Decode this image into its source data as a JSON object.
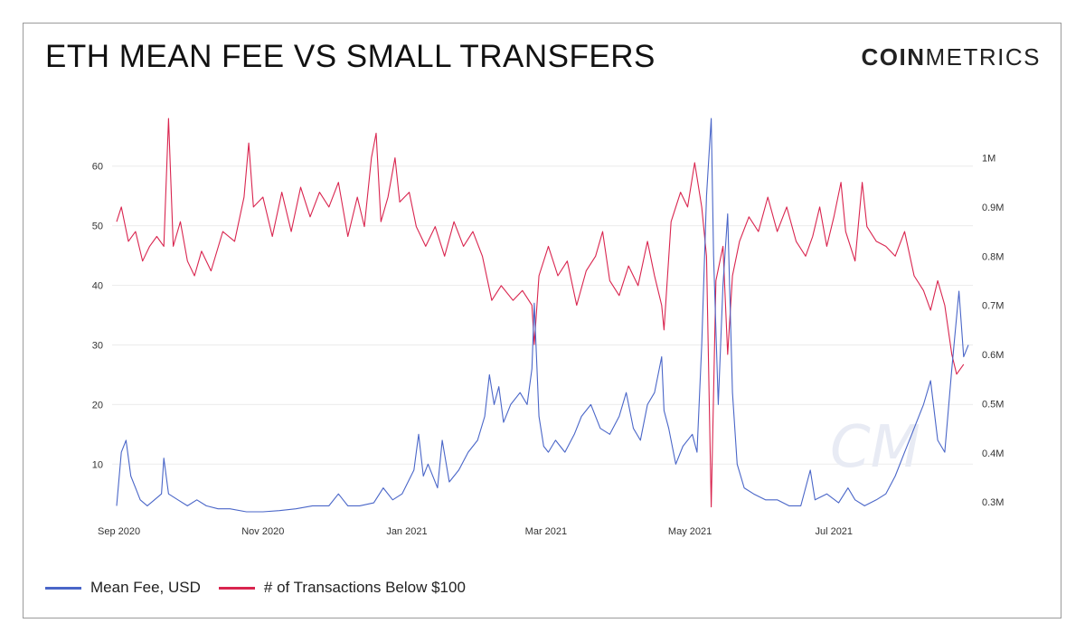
{
  "header": {
    "title": "ETH MEAN FEE VS SMALL TRANSFERS",
    "logo_bold": "COIN",
    "logo_light": "METRICS"
  },
  "watermark": {
    "text": "CM"
  },
  "legend": [
    {
      "label": "Mean Fee, USD",
      "color": "#4a66c8"
    },
    {
      "label": "# of Transactions Below $100",
      "color": "#d9254f"
    }
  ],
  "chart_data": {
    "type": "line",
    "title": "ETH MEAN FEE VS SMALL TRANSFERS",
    "x_range": [
      "2020-08-31",
      "2021-08-27"
    ],
    "x_ticks": [
      {
        "date": "2020-09-01",
        "label": "Sep 2020"
      },
      {
        "date": "2020-11-01",
        "label": "Nov 2020"
      },
      {
        "date": "2021-01-01",
        "label": "Jan 2021"
      },
      {
        "date": "2021-03-01",
        "label": "Mar 2021"
      },
      {
        "date": "2021-05-01",
        "label": "May 2021"
      },
      {
        "date": "2021-07-01",
        "label": "Jul 2021"
      }
    ],
    "y_left": {
      "label": "",
      "ticks": [
        10,
        20,
        30,
        40,
        50,
        60
      ],
      "range": [
        2,
        68
      ],
      "grid": true
    },
    "y_right": {
      "label": "",
      "ticks": [
        "0.3M",
        "0.4M",
        "0.5M",
        "0.6M",
        "0.7M",
        "0.8M",
        "0.9M",
        "1M"
      ],
      "tick_values": [
        0.3,
        0.4,
        0.5,
        0.6,
        0.7,
        0.8,
        0.9,
        1.0
      ],
      "range": [
        0.28,
        1.08
      ]
    },
    "series": [
      {
        "name": "Mean Fee, USD",
        "axis": "left",
        "color": "#4a66c8",
        "points": [
          [
            "2020-08-31",
            3
          ],
          [
            "2020-09-02",
            12
          ],
          [
            "2020-09-04",
            14
          ],
          [
            "2020-09-06",
            8
          ],
          [
            "2020-09-08",
            6
          ],
          [
            "2020-09-10",
            4
          ],
          [
            "2020-09-13",
            3
          ],
          [
            "2020-09-16",
            4
          ],
          [
            "2020-09-19",
            5
          ],
          [
            "2020-09-20",
            11
          ],
          [
            "2020-09-22",
            5
          ],
          [
            "2020-09-26",
            4
          ],
          [
            "2020-09-30",
            3
          ],
          [
            "2020-10-04",
            4
          ],
          [
            "2020-10-08",
            3
          ],
          [
            "2020-10-13",
            2.5
          ],
          [
            "2020-10-18",
            2.5
          ],
          [
            "2020-10-25",
            2
          ],
          [
            "2020-11-01",
            2
          ],
          [
            "2020-11-08",
            2.2
          ],
          [
            "2020-11-15",
            2.5
          ],
          [
            "2020-11-22",
            3
          ],
          [
            "2020-11-29",
            3
          ],
          [
            "2020-12-03",
            5
          ],
          [
            "2020-12-07",
            3
          ],
          [
            "2020-12-12",
            3
          ],
          [
            "2020-12-18",
            3.5
          ],
          [
            "2020-12-22",
            6
          ],
          [
            "2020-12-26",
            4
          ],
          [
            "2020-12-30",
            5
          ],
          [
            "2021-01-04",
            9
          ],
          [
            "2021-01-06",
            15
          ],
          [
            "2021-01-08",
            8
          ],
          [
            "2021-01-10",
            10
          ],
          [
            "2021-01-14",
            6
          ],
          [
            "2021-01-16",
            14
          ],
          [
            "2021-01-19",
            7
          ],
          [
            "2021-01-23",
            9
          ],
          [
            "2021-01-27",
            12
          ],
          [
            "2021-01-31",
            14
          ],
          [
            "2021-02-03",
            18
          ],
          [
            "2021-02-05",
            25
          ],
          [
            "2021-02-07",
            20
          ],
          [
            "2021-02-09",
            23
          ],
          [
            "2021-02-11",
            17
          ],
          [
            "2021-02-14",
            20
          ],
          [
            "2021-02-18",
            22
          ],
          [
            "2021-02-21",
            20
          ],
          [
            "2021-02-23",
            26
          ],
          [
            "2021-02-24",
            37
          ],
          [
            "2021-02-26",
            18
          ],
          [
            "2021-02-28",
            13
          ],
          [
            "2021-03-02",
            12
          ],
          [
            "2021-03-05",
            14
          ],
          [
            "2021-03-09",
            12
          ],
          [
            "2021-03-13",
            15
          ],
          [
            "2021-03-16",
            18
          ],
          [
            "2021-03-20",
            20
          ],
          [
            "2021-03-24",
            16
          ],
          [
            "2021-03-28",
            15
          ],
          [
            "2021-04-01",
            18
          ],
          [
            "2021-04-04",
            22
          ],
          [
            "2021-04-07",
            16
          ],
          [
            "2021-04-10",
            14
          ],
          [
            "2021-04-13",
            20
          ],
          [
            "2021-04-16",
            22
          ],
          [
            "2021-04-19",
            28
          ],
          [
            "2021-04-20",
            19
          ],
          [
            "2021-04-22",
            16
          ],
          [
            "2021-04-25",
            10
          ],
          [
            "2021-04-28",
            13
          ],
          [
            "2021-05-02",
            15
          ],
          [
            "2021-05-04",
            12
          ],
          [
            "2021-05-06",
            30
          ],
          [
            "2021-05-08",
            55
          ],
          [
            "2021-05-10",
            68
          ],
          [
            "2021-05-11",
            45
          ],
          [
            "2021-05-13",
            20
          ],
          [
            "2021-05-15",
            40
          ],
          [
            "2021-05-17",
            52
          ],
          [
            "2021-05-19",
            22
          ],
          [
            "2021-05-21",
            10
          ],
          [
            "2021-05-24",
            6
          ],
          [
            "2021-05-28",
            5
          ],
          [
            "2021-06-02",
            4
          ],
          [
            "2021-06-07",
            4
          ],
          [
            "2021-06-12",
            3
          ],
          [
            "2021-06-17",
            3
          ],
          [
            "2021-06-21",
            9
          ],
          [
            "2021-06-23",
            4
          ],
          [
            "2021-06-28",
            5
          ],
          [
            "2021-07-03",
            3.5
          ],
          [
            "2021-07-07",
            6
          ],
          [
            "2021-07-10",
            4
          ],
          [
            "2021-07-14",
            3
          ],
          [
            "2021-07-19",
            4
          ],
          [
            "2021-07-23",
            5
          ],
          [
            "2021-07-27",
            8
          ],
          [
            "2021-07-31",
            12
          ],
          [
            "2021-08-04",
            16
          ],
          [
            "2021-08-08",
            20
          ],
          [
            "2021-08-11",
            24
          ],
          [
            "2021-08-14",
            14
          ],
          [
            "2021-08-17",
            12
          ],
          [
            "2021-08-20",
            26
          ],
          [
            "2021-08-23",
            39
          ],
          [
            "2021-08-25",
            28
          ],
          [
            "2021-08-27",
            30
          ]
        ]
      },
      {
        "name": "# of Transactions Below $100",
        "axis": "right",
        "color": "#d9254f",
        "points": [
          [
            "2020-08-31",
            0.87
          ],
          [
            "2020-09-02",
            0.9
          ],
          [
            "2020-09-05",
            0.83
          ],
          [
            "2020-09-08",
            0.85
          ],
          [
            "2020-09-11",
            0.79
          ],
          [
            "2020-09-14",
            0.82
          ],
          [
            "2020-09-17",
            0.84
          ],
          [
            "2020-09-20",
            0.82
          ],
          [
            "2020-09-22",
            1.08
          ],
          [
            "2020-09-24",
            0.82
          ],
          [
            "2020-09-27",
            0.87
          ],
          [
            "2020-09-30",
            0.79
          ],
          [
            "2020-10-03",
            0.76
          ],
          [
            "2020-10-06",
            0.81
          ],
          [
            "2020-10-10",
            0.77
          ],
          [
            "2020-10-15",
            0.85
          ],
          [
            "2020-10-20",
            0.83
          ],
          [
            "2020-10-24",
            0.92
          ],
          [
            "2020-10-26",
            1.03
          ],
          [
            "2020-10-28",
            0.9
          ],
          [
            "2020-11-01",
            0.92
          ],
          [
            "2020-11-05",
            0.84
          ],
          [
            "2020-11-09",
            0.93
          ],
          [
            "2020-11-13",
            0.85
          ],
          [
            "2020-11-17",
            0.94
          ],
          [
            "2020-11-21",
            0.88
          ],
          [
            "2020-11-25",
            0.93
          ],
          [
            "2020-11-29",
            0.9
          ],
          [
            "2020-12-03",
            0.95
          ],
          [
            "2020-12-07",
            0.84
          ],
          [
            "2020-12-11",
            0.92
          ],
          [
            "2020-12-14",
            0.86
          ],
          [
            "2020-12-17",
            1.0
          ],
          [
            "2020-12-19",
            1.05
          ],
          [
            "2020-12-21",
            0.87
          ],
          [
            "2020-12-24",
            0.92
          ],
          [
            "2020-12-27",
            1.0
          ],
          [
            "2020-12-29",
            0.91
          ],
          [
            "2021-01-02",
            0.93
          ],
          [
            "2021-01-05",
            0.86
          ],
          [
            "2021-01-09",
            0.82
          ],
          [
            "2021-01-13",
            0.86
          ],
          [
            "2021-01-17",
            0.8
          ],
          [
            "2021-01-21",
            0.87
          ],
          [
            "2021-01-25",
            0.82
          ],
          [
            "2021-01-29",
            0.85
          ],
          [
            "2021-02-02",
            0.8
          ],
          [
            "2021-02-06",
            0.71
          ],
          [
            "2021-02-10",
            0.74
          ],
          [
            "2021-02-15",
            0.71
          ],
          [
            "2021-02-19",
            0.73
          ],
          [
            "2021-02-23",
            0.7
          ],
          [
            "2021-02-24",
            0.62
          ],
          [
            "2021-02-26",
            0.76
          ],
          [
            "2021-03-02",
            0.82
          ],
          [
            "2021-03-06",
            0.76
          ],
          [
            "2021-03-10",
            0.79
          ],
          [
            "2021-03-14",
            0.7
          ],
          [
            "2021-03-18",
            0.77
          ],
          [
            "2021-03-22",
            0.8
          ],
          [
            "2021-03-25",
            0.85
          ],
          [
            "2021-03-28",
            0.75
          ],
          [
            "2021-04-01",
            0.72
          ],
          [
            "2021-04-05",
            0.78
          ],
          [
            "2021-04-09",
            0.74
          ],
          [
            "2021-04-13",
            0.83
          ],
          [
            "2021-04-16",
            0.76
          ],
          [
            "2021-04-19",
            0.7
          ],
          [
            "2021-04-20",
            0.65
          ],
          [
            "2021-04-23",
            0.87
          ],
          [
            "2021-04-27",
            0.93
          ],
          [
            "2021-04-30",
            0.9
          ],
          [
            "2021-05-03",
            0.99
          ],
          [
            "2021-05-06",
            0.9
          ],
          [
            "2021-05-08",
            0.8
          ],
          [
            "2021-05-10",
            0.29
          ],
          [
            "2021-05-12",
            0.75
          ],
          [
            "2021-05-15",
            0.82
          ],
          [
            "2021-05-17",
            0.6
          ],
          [
            "2021-05-19",
            0.76
          ],
          [
            "2021-05-22",
            0.83
          ],
          [
            "2021-05-26",
            0.88
          ],
          [
            "2021-05-30",
            0.85
          ],
          [
            "2021-06-03",
            0.92
          ],
          [
            "2021-06-07",
            0.85
          ],
          [
            "2021-06-11",
            0.9
          ],
          [
            "2021-06-15",
            0.83
          ],
          [
            "2021-06-19",
            0.8
          ],
          [
            "2021-06-22",
            0.84
          ],
          [
            "2021-06-25",
            0.9
          ],
          [
            "2021-06-28",
            0.82
          ],
          [
            "2021-07-01",
            0.88
          ],
          [
            "2021-07-04",
            0.95
          ],
          [
            "2021-07-06",
            0.85
          ],
          [
            "2021-07-10",
            0.79
          ],
          [
            "2021-07-13",
            0.95
          ],
          [
            "2021-07-15",
            0.86
          ],
          [
            "2021-07-19",
            0.83
          ],
          [
            "2021-07-23",
            0.82
          ],
          [
            "2021-07-27",
            0.8
          ],
          [
            "2021-07-31",
            0.85
          ],
          [
            "2021-08-04",
            0.76
          ],
          [
            "2021-08-08",
            0.73
          ],
          [
            "2021-08-11",
            0.69
          ],
          [
            "2021-08-14",
            0.75
          ],
          [
            "2021-08-17",
            0.7
          ],
          [
            "2021-08-20",
            0.6
          ],
          [
            "2021-08-22",
            0.56
          ],
          [
            "2021-08-25",
            0.58
          ]
        ]
      }
    ]
  }
}
